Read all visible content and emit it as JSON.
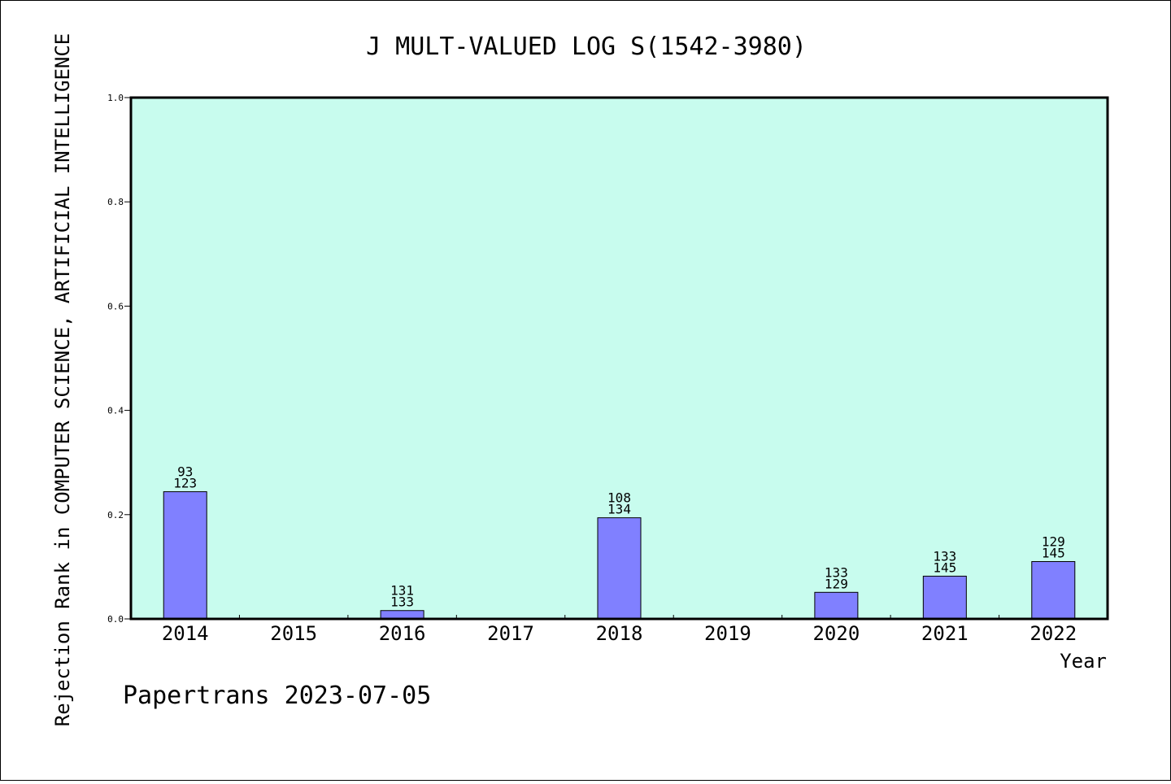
{
  "chart_data": {
    "type": "bar",
    "title": "J MULT-VALUED LOG S(1542-3980)",
    "xlabel": "Year",
    "ylabel": "Rejection Rank in COMPUTER SCIENCE, ARTIFICIAL INTELLIGENCE",
    "categories": [
      "2014",
      "2015",
      "2016",
      "2017",
      "2018",
      "2019",
      "2020",
      "2021",
      "2022"
    ],
    "values": [
      0.244,
      0,
      0.016,
      0,
      0.194,
      0,
      0.051,
      0.082,
      0.11
    ],
    "labels_top": [
      "93",
      "",
      "131",
      "",
      "108",
      "",
      "133",
      "133",
      "129"
    ],
    "labels_bottom": [
      "123",
      "",
      "133",
      "",
      "134",
      "",
      "129",
      "145",
      "145"
    ],
    "ylim": [
      0,
      1.0
    ],
    "yticks": [
      "0.0",
      "0.2",
      "0.4",
      "0.6",
      "0.8",
      "1.0"
    ],
    "grid": false,
    "colors": {
      "plot_background": "#c8fcee",
      "bar_fill": "#8080ff",
      "bar_stroke": "#000000"
    }
  },
  "footer": {
    "text": "Papertrans 2023-07-05"
  }
}
